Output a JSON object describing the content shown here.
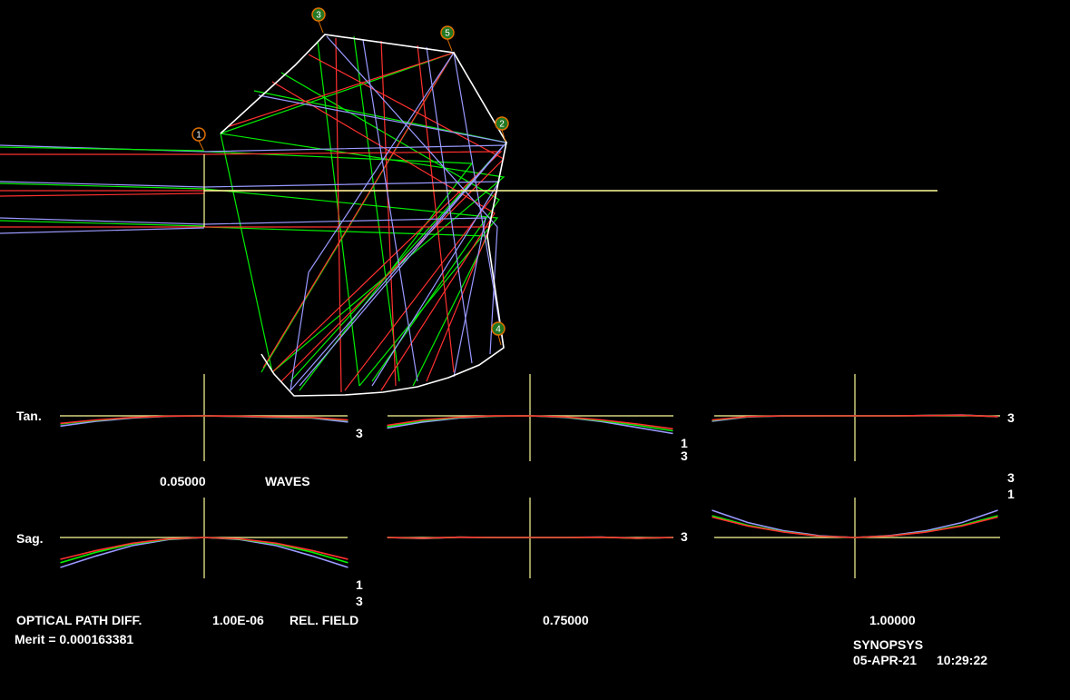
{
  "colors": {
    "background": "#000000",
    "wavelength_1": "#ff3030",
    "wavelength_2": "#00ee00",
    "wavelength_3": "#9999ff",
    "axis": "#ffff99",
    "prism": "#ffffff",
    "badge_ring": "#e07000",
    "badge_fill": "#227722"
  },
  "surfaces": [
    "1",
    "2",
    "3",
    "4",
    "5"
  ],
  "plot_labels": {
    "tangential": "Tan.",
    "sagittal": "Sag.",
    "curve_label_1": "1",
    "curve_label_3": "3"
  },
  "scale": {
    "value": "0.05000",
    "unit": "WAVES"
  },
  "footer": {
    "title": "OPTICAL PATH DIFF.",
    "wavelength": "1.00E-06",
    "rel_field_label": "REL. FIELD",
    "fields": [
      "0.05000",
      "0.75000",
      "1.00000"
    ],
    "merit": "Merit = 0.000163381",
    "program": "SYNOPSYS",
    "date": "05-APR-21",
    "time": "10:29:22"
  },
  "chart_data": {
    "type": "line",
    "xlim": [
      -1,
      1
    ],
    "wavelengths": [
      "1",
      "2",
      "3"
    ],
    "panels": [
      {
        "field": "0.05000",
        "section": "Tan.",
        "curve_labels": [
          "3"
        ],
        "series": [
          {
            "name": "1",
            "x": [
              -1,
              -0.75,
              -0.5,
              -0.25,
              0,
              0.25,
              0.5,
              0.75,
              1
            ],
            "y": [
              -0.55,
              -0.3,
              -0.12,
              -0.02,
              0,
              -0.03,
              -0.08,
              -0.12,
              -0.3
            ]
          },
          {
            "name": "2",
            "x": [
              -1,
              -0.75,
              -0.5,
              -0.25,
              0,
              0.25,
              0.5,
              0.75,
              1
            ],
            "y": [
              -0.6,
              -0.33,
              -0.13,
              -0.02,
              0,
              -0.04,
              -0.1,
              -0.14,
              -0.33
            ]
          },
          {
            "name": "3",
            "x": [
              -1,
              -0.75,
              -0.5,
              -0.25,
              0,
              0.25,
              0.5,
              0.75,
              1
            ],
            "y": [
              -0.75,
              -0.4,
              -0.16,
              -0.03,
              0,
              -0.05,
              -0.12,
              -0.16,
              -0.45
            ]
          }
        ]
      },
      {
        "field": "0.75000",
        "section": "Tan.",
        "curve_labels": [
          "1",
          "3"
        ],
        "series": [
          {
            "name": "1",
            "x": [
              -1,
              -0.75,
              -0.5,
              -0.25,
              0,
              0.25,
              0.5,
              0.75,
              1
            ],
            "y": [
              -0.7,
              -0.3,
              -0.1,
              -0.01,
              0,
              -0.08,
              -0.3,
              -0.6,
              -0.95
            ]
          },
          {
            "name": "2",
            "x": [
              -1,
              -0.75,
              -0.5,
              -0.25,
              0,
              0.25,
              0.5,
              0.75,
              1
            ],
            "y": [
              -0.8,
              -0.35,
              -0.12,
              -0.02,
              0,
              -0.1,
              -0.35,
              -0.7,
              -1.1
            ]
          },
          {
            "name": "3",
            "x": [
              -1,
              -0.75,
              -0.5,
              -0.25,
              0,
              0.25,
              0.5,
              0.75,
              1
            ],
            "y": [
              -0.9,
              -0.45,
              -0.16,
              -0.03,
              0,
              -0.12,
              -0.42,
              -0.85,
              -1.3
            ]
          }
        ]
      },
      {
        "field": "1.00000",
        "section": "Tan.",
        "curve_labels": [
          "3"
        ],
        "series": [
          {
            "name": "1",
            "x": [
              -1,
              -0.75,
              -0.5,
              -0.25,
              0,
              0.25,
              0.5,
              0.75,
              1
            ],
            "y": [
              -0.3,
              -0.05,
              0,
              0,
              0,
              0,
              0.02,
              0.05,
              -0.05
            ]
          },
          {
            "name": "2",
            "x": [
              -1,
              -0.75,
              -0.5,
              -0.25,
              0,
              0.25,
              0.5,
              0.75,
              1
            ],
            "y": [
              -0.33,
              -0.06,
              0,
              0,
              0,
              0,
              0.02,
              0.05,
              -0.05
            ]
          },
          {
            "name": "3",
            "x": [
              -1,
              -0.75,
              -0.5,
              -0.25,
              0,
              0.25,
              0.5,
              0.75,
              1
            ],
            "y": [
              -0.4,
              -0.08,
              -0.01,
              0,
              0,
              0,
              0.03,
              0.06,
              -0.06
            ]
          }
        ]
      },
      {
        "field": "0.05000",
        "section": "Sag.",
        "curve_labels": [
          "1",
          "3"
        ],
        "series": [
          {
            "name": "1",
            "x": [
              -1,
              -0.75,
              -0.5,
              -0.25,
              0,
              0.25,
              0.5,
              0.75,
              1
            ],
            "y": [
              -1.6,
              -0.95,
              -0.42,
              -0.1,
              0,
              -0.1,
              -0.42,
              -0.95,
              -1.6
            ]
          },
          {
            "name": "2",
            "x": [
              -1,
              -0.75,
              -0.5,
              -0.25,
              0,
              0.25,
              0.5,
              0.75,
              1
            ],
            "y": [
              -1.85,
              -1.08,
              -0.48,
              -0.12,
              0,
              -0.12,
              -0.48,
              -1.08,
              -1.85
            ]
          },
          {
            "name": "3",
            "x": [
              -1,
              -0.75,
              -0.5,
              -0.25,
              0,
              0.25,
              0.5,
              0.75,
              1
            ],
            "y": [
              -2.2,
              -1.35,
              -0.6,
              -0.15,
              0,
              -0.15,
              -0.6,
              -1.35,
              -2.2
            ]
          }
        ]
      },
      {
        "field": "0.75000",
        "section": "Sag.",
        "curve_labels": [
          "3"
        ],
        "series": [
          {
            "name": "1",
            "x": [
              -1,
              -0.75,
              -0.5,
              -0.25,
              0,
              0.25,
              0.5,
              0.75,
              1
            ],
            "y": [
              0,
              -0.05,
              0.02,
              0,
              0,
              0,
              0.02,
              -0.05,
              0
            ]
          },
          {
            "name": "2",
            "x": [
              -1,
              -0.75,
              -0.5,
              -0.25,
              0,
              0.25,
              0.5,
              0.75,
              1
            ],
            "y": [
              0,
              -0.06,
              0.02,
              0,
              0,
              0,
              0.02,
              -0.06,
              0
            ]
          },
          {
            "name": "3",
            "x": [
              -1,
              -0.75,
              -0.5,
              -0.25,
              0,
              0.25,
              0.5,
              0.75,
              1
            ],
            "y": [
              0,
              -0.08,
              0.02,
              0,
              0,
              0,
              0.03,
              -0.07,
              0
            ]
          }
        ]
      },
      {
        "field": "1.00000",
        "section": "Sag.",
        "curve_labels": [
          "3",
          "1"
        ],
        "series": [
          {
            "name": "1",
            "x": [
              -1,
              -0.75,
              -0.5,
              -0.25,
              0,
              0.25,
              0.5,
              0.75,
              1
            ],
            "y": [
              1.5,
              0.85,
              0.4,
              0.1,
              0,
              0.12,
              0.4,
              0.85,
              1.5
            ]
          },
          {
            "name": "2",
            "x": [
              -1,
              -0.75,
              -0.5,
              -0.25,
              0,
              0.25,
              0.5,
              0.75,
              1
            ],
            "y": [
              1.6,
              0.9,
              0.42,
              0.1,
              0,
              0.12,
              0.42,
              0.9,
              1.6
            ]
          },
          {
            "name": "3",
            "x": [
              -1,
              -0.75,
              -0.5,
              -0.25,
              0,
              0.25,
              0.5,
              0.75,
              1
            ],
            "y": [
              2.0,
              1.1,
              0.5,
              0.13,
              0,
              0.15,
              0.5,
              1.1,
              2.0
            ]
          }
        ]
      }
    ]
  }
}
